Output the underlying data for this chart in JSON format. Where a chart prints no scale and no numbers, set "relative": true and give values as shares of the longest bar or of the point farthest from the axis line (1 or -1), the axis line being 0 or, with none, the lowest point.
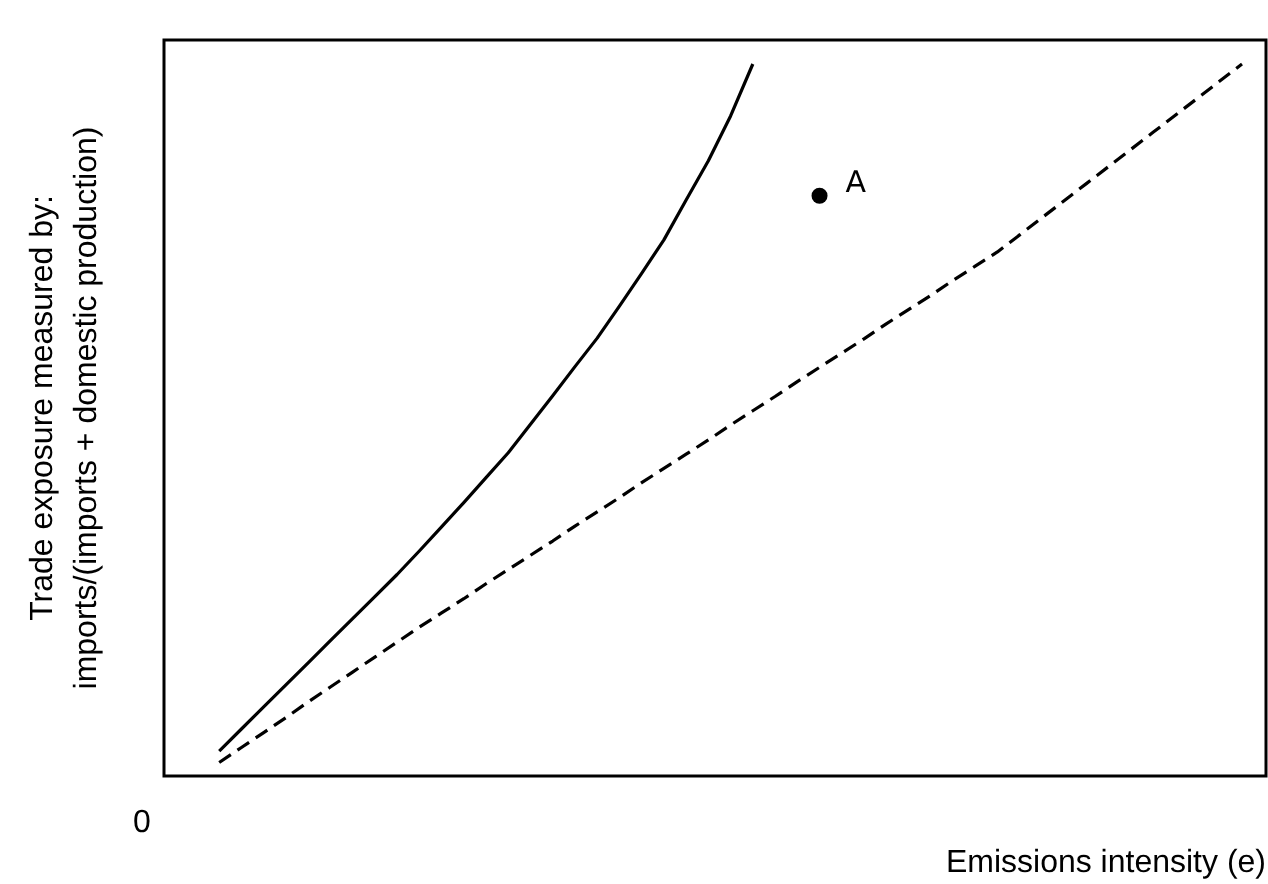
{
  "chart_data": {
    "type": "line",
    "relative": true,
    "xlabel": "Emissions intensity (e)",
    "ylabel": "Trade exposure measured by:\nimports/(imports + domestic production)",
    "annotations": [
      "0"
    ],
    "categories": [
      null,
      null,
      null,
      null,
      null,
      null,
      null,
      null,
      null,
      null,
      null,
      null,
      null,
      null,
      null,
      null,
      null,
      null,
      null,
      null,
      null,
      null,
      null,
      null,
      null,
      null,
      null,
      null,
      null,
      null,
      null,
      null,
      null,
      null,
      null,
      null,
      null,
      null,
      null,
      null,
      null,
      null,
      null,
      null,
      null,
      null,
      null
    ],
    "series": [
      {
        "color": "#000000",
        "line_style": "solid",
        "values": [
          0.035,
          0.066,
          0.097,
          0.128,
          0.159,
          0.19,
          0.221,
          0.252,
          0.283,
          0.316,
          0.35,
          0.384,
          0.419,
          0.454,
          0.494,
          0.534,
          0.575,
          0.615,
          0.66,
          0.706,
          0.753,
          0.809,
          0.864,
          0.927,
          1,
          null,
          null,
          null,
          null,
          null,
          null,
          null,
          null,
          null,
          null,
          null,
          null,
          null,
          null,
          null,
          null,
          null,
          null,
          null,
          null,
          null,
          null
        ]
      },
      {
        "color": "#000000",
        "line_style": "dashed",
        "values": [
          0.019,
          0.04,
          0.061,
          0.082,
          0.104,
          0.125,
          0.146,
          0.167,
          0.188,
          0.209,
          0.229,
          0.249,
          0.27,
          0.29,
          0.31,
          0.33,
          0.351,
          0.371,
          0.391,
          0.412,
          0.432,
          0.452,
          0.472,
          0.493,
          0.513,
          0.533,
          0.554,
          0.574,
          0.594,
          0.614,
          0.635,
          0.655,
          0.675,
          0.696,
          0.716,
          0.736,
          0.76,
          0.784,
          0.808,
          0.832,
          0.856,
          0.88,
          0.904,
          0.928,
          0.952,
          0.976,
          1
        ]
      },
      {
        "name": "A",
        "color": "#000000",
        "marker": "circle",
        "values": [
          null,
          null,
          null,
          null,
          null,
          null,
          null,
          null,
          null,
          null,
          null,
          null,
          null,
          null,
          null,
          null,
          null,
          null,
          null,
          null,
          null,
          null,
          null,
          null,
          null,
          null,
          null,
          0.815,
          null,
          null,
          null,
          null,
          null,
          null,
          null,
          null,
          null,
          null,
          null,
          null,
          null,
          null,
          null,
          null,
          null,
          null,
          null
        ]
      }
    ]
  }
}
